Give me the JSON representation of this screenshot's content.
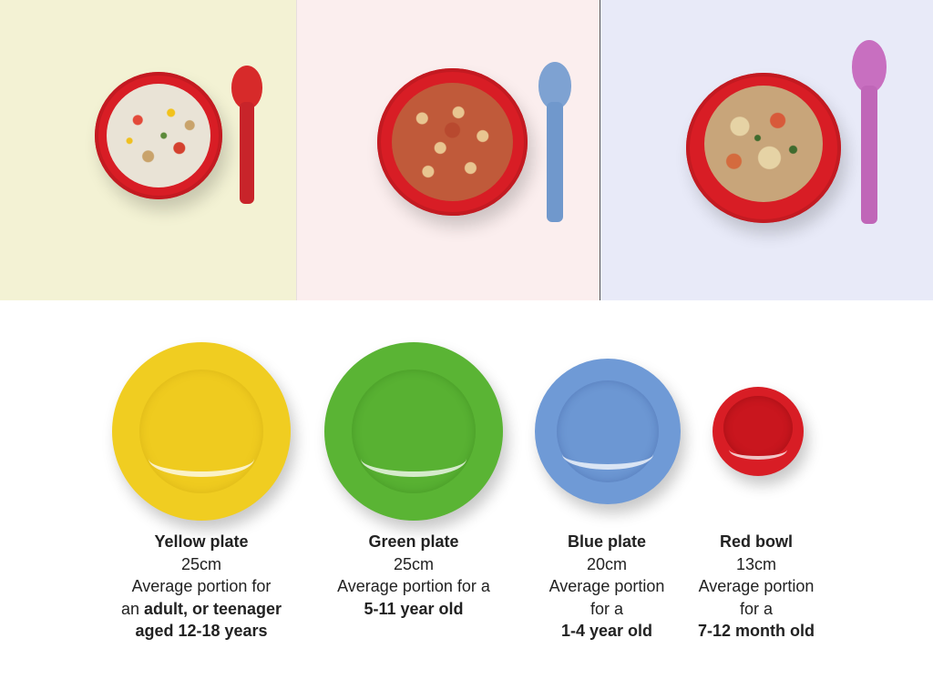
{
  "colors": {
    "panel_yellow": "#f3f2d4",
    "panel_pink": "#fbeeee",
    "panel_blue": "#e8eaf8",
    "yellow_plate": "#f0cd21",
    "green_plate": "#5ab434",
    "blue_plate": "#6f9ad6",
    "red_bowl": "#d81d25",
    "red_spoon": "#d72a2a",
    "blue_spoon": "#7ea2d2",
    "pink_spoon": "#c86fc0"
  },
  "panels": [
    {
      "icon": "red-bowl-with-rice-icon",
      "spoon": "red-spoon-icon"
    },
    {
      "icon": "red-bowl-with-pasta-icon",
      "spoon": "blue-spoon-icon"
    },
    {
      "icon": "red-bowl-with-pasta-bake-icon",
      "spoon": "pink-spoon-icon"
    }
  ],
  "plates": [
    {
      "icon": "yellow-plate-icon",
      "title": "Yellow plate",
      "size": "25cm",
      "line1": "Average portion for",
      "line2_pre": "an ",
      "line2_bold": "adult, or teenager",
      "line3_bold": "aged 12-18 years"
    },
    {
      "icon": "green-plate-icon",
      "title": "Green plate",
      "size": "25cm",
      "line1": "Average portion for a",
      "line2_bold": "5-11 year old"
    },
    {
      "icon": "blue-plate-icon",
      "title": "Blue plate",
      "size": "20cm",
      "line1": "Average portion",
      "line2": "for a",
      "line3_bold": "1-4 year old"
    },
    {
      "icon": "red-bowl-icon",
      "title": "Red bowl",
      "size": "13cm",
      "line1": "Average portion",
      "line2": "for a",
      "line3_bold": "7-12 month old"
    }
  ]
}
